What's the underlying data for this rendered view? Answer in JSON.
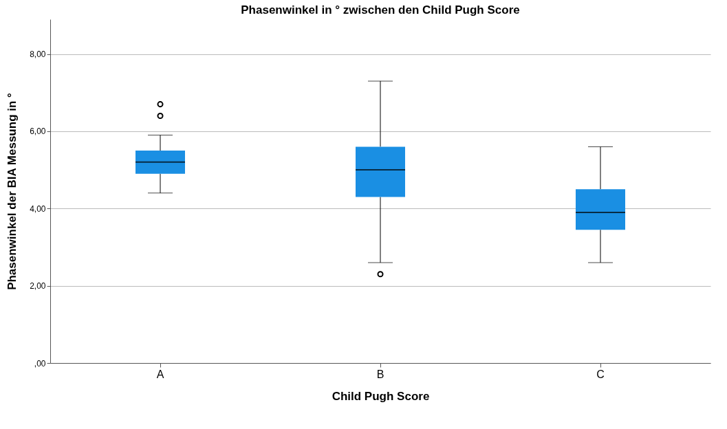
{
  "chart_data": {
    "type": "box",
    "title": "Phasenwinkel in ° zwischen den Child Pugh Score",
    "xlabel": "Child Pugh Score",
    "ylabel": "Phasenwinkel der BIA Messung in °",
    "categories": [
      "A",
      "B",
      "C"
    ],
    "series": [
      {
        "color": "#1a8fe3",
        "boxes": [
          {
            "low": 4.4,
            "q1": 4.9,
            "median": 5.2,
            "q3": 5.5,
            "high": 5.9,
            "outliers": [
              6.4,
              6.7
            ]
          },
          {
            "low": 2.6,
            "q1": 4.3,
            "median": 5.0,
            "q3": 5.6,
            "high": 7.3,
            "outliers": [
              2.3
            ]
          },
          {
            "low": 2.6,
            "q1": 3.45,
            "median": 3.9,
            "q3": 4.5,
            "high": 5.6
          }
        ]
      }
    ],
    "ylim": [
      0,
      8.9
    ],
    "yticks": [
      {
        "value": 0,
        "label": ",00"
      },
      {
        "value": 2,
        "label": "2,00"
      },
      {
        "value": 4,
        "label": "4,00"
      },
      {
        "value": 6,
        "label": "6,00"
      },
      {
        "value": 8,
        "label": "8,00"
      }
    ],
    "grid": "y"
  }
}
